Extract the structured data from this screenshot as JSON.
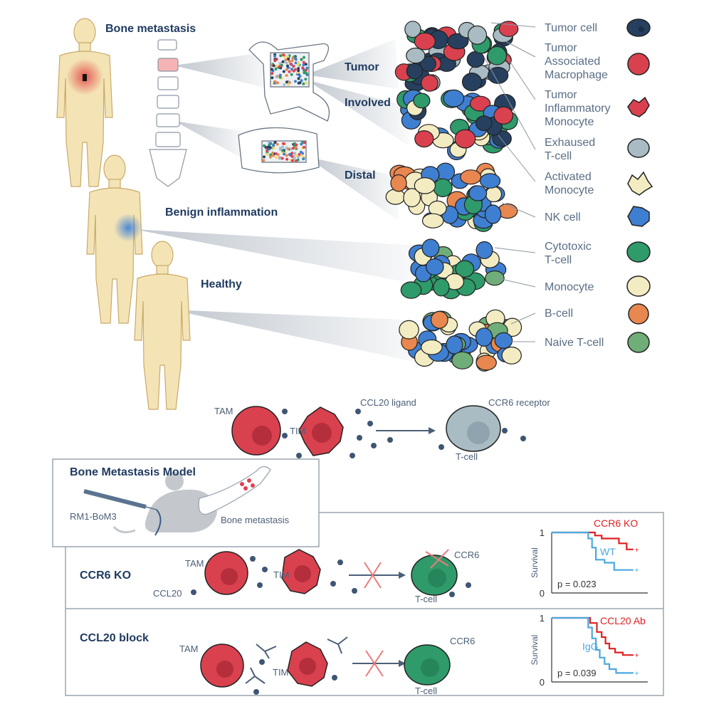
{
  "groups": {
    "bone_metastasis": "Bone metastasis",
    "benign_inflammation": "Benign inflammation",
    "healthy": "Healthy"
  },
  "sites": {
    "tumor": "Tumor",
    "involved": "Involved",
    "distal": "Distal"
  },
  "legend": [
    {
      "label": "Tumor cell",
      "color": "#27405f"
    },
    {
      "label": "Tumor\nAssociated\nMacrophage",
      "color": "#d9414f"
    },
    {
      "label": "Tumor\nInflammatory\nMonocyte",
      "color": "#d9414f"
    },
    {
      "label": "Exhaused\nT-cell",
      "color": "#a9bcc4"
    },
    {
      "label": "Activated\nMonocyte",
      "color": "#f3ecc2"
    },
    {
      "label": "NK cell",
      "color": "#3f7fd1"
    },
    {
      "label": "Cytotoxic\nT-cell",
      "color": "#2f9a6a"
    },
    {
      "label": "Monocyte",
      "color": "#f3ecc2"
    },
    {
      "label": "B-cell",
      "color": "#e8874f"
    },
    {
      "label": "Naive T-cell",
      "color": "#6fae78"
    }
  ],
  "mechanism": {
    "tam": "TAM",
    "tim": "TIM",
    "ligand": "CCL20 ligand",
    "receptor": "CCR6 receptor",
    "tcell": "T-cell"
  },
  "model": {
    "title": "Bone Metastasis Model",
    "cell_line": "RM1-BoM3",
    "site": "Bone metastasis"
  },
  "experiments": {
    "ko": {
      "title": "CCR6 KO",
      "tam": "TAM",
      "tim": "TIM",
      "ccl20": "CCL20",
      "ccr6": "CCR6",
      "tcell": "T-cell"
    },
    "block": {
      "title": "CCL20 block",
      "tam": "TAM",
      "tim": "TIM",
      "ccr6": "CCR6",
      "tcell": "T-cell"
    }
  },
  "chart_data": [
    {
      "type": "line",
      "ylabel": "Survival",
      "yticks": [
        "1",
        "0"
      ],
      "ylim": [
        0,
        1
      ],
      "p_value": "p = 0.023",
      "series": [
        {
          "name": "CCR6 KO",
          "color": "#e02020",
          "points": [
            [
              0,
              1
            ],
            [
              0.45,
              1
            ],
            [
              0.45,
              0.95
            ],
            [
              0.52,
              0.95
            ],
            [
              0.52,
              0.9
            ],
            [
              0.7,
              0.9
            ],
            [
              0.7,
              0.82
            ],
            [
              0.78,
              0.82
            ],
            [
              0.78,
              0.72
            ],
            [
              0.85,
              0.72
            ]
          ]
        },
        {
          "name": "WT",
          "color": "#4aa8e0",
          "points": [
            [
              0,
              1
            ],
            [
              0.38,
              1
            ],
            [
              0.38,
              0.9
            ],
            [
              0.42,
              0.9
            ],
            [
              0.42,
              0.75
            ],
            [
              0.46,
              0.75
            ],
            [
              0.46,
              0.55
            ],
            [
              0.55,
              0.55
            ],
            [
              0.55,
              0.5
            ],
            [
              0.65,
              0.5
            ],
            [
              0.65,
              0.38
            ],
            [
              0.85,
              0.38
            ]
          ]
        }
      ]
    },
    {
      "type": "line",
      "ylabel": "Survival",
      "yticks": [
        "1",
        "0"
      ],
      "ylim": [
        0,
        1
      ],
      "p_value": "p = 0.039",
      "series": [
        {
          "name": "CCL20 Ab",
          "color": "#e02020",
          "points": [
            [
              0,
              1
            ],
            [
              0.4,
              1
            ],
            [
              0.4,
              0.92
            ],
            [
              0.47,
              0.92
            ],
            [
              0.47,
              0.78
            ],
            [
              0.52,
              0.78
            ],
            [
              0.52,
              0.7
            ],
            [
              0.56,
              0.7
            ],
            [
              0.56,
              0.6
            ],
            [
              0.6,
              0.6
            ],
            [
              0.6,
              0.52
            ],
            [
              0.66,
              0.52
            ],
            [
              0.66,
              0.46
            ],
            [
              0.74,
              0.46
            ],
            [
              0.74,
              0.42
            ],
            [
              0.85,
              0.42
            ]
          ]
        },
        {
          "name": "IgG",
          "color": "#4aa8e0",
          "points": [
            [
              0,
              1
            ],
            [
              0.38,
              1
            ],
            [
              0.38,
              0.85
            ],
            [
              0.42,
              0.85
            ],
            [
              0.42,
              0.68
            ],
            [
              0.46,
              0.68
            ],
            [
              0.46,
              0.5
            ],
            [
              0.5,
              0.5
            ],
            [
              0.5,
              0.38
            ],
            [
              0.55,
              0.38
            ],
            [
              0.55,
              0.28
            ],
            [
              0.6,
              0.28
            ],
            [
              0.6,
              0.2
            ],
            [
              0.67,
              0.2
            ],
            [
              0.67,
              0.14
            ],
            [
              0.85,
              0.14
            ]
          ]
        }
      ]
    }
  ]
}
